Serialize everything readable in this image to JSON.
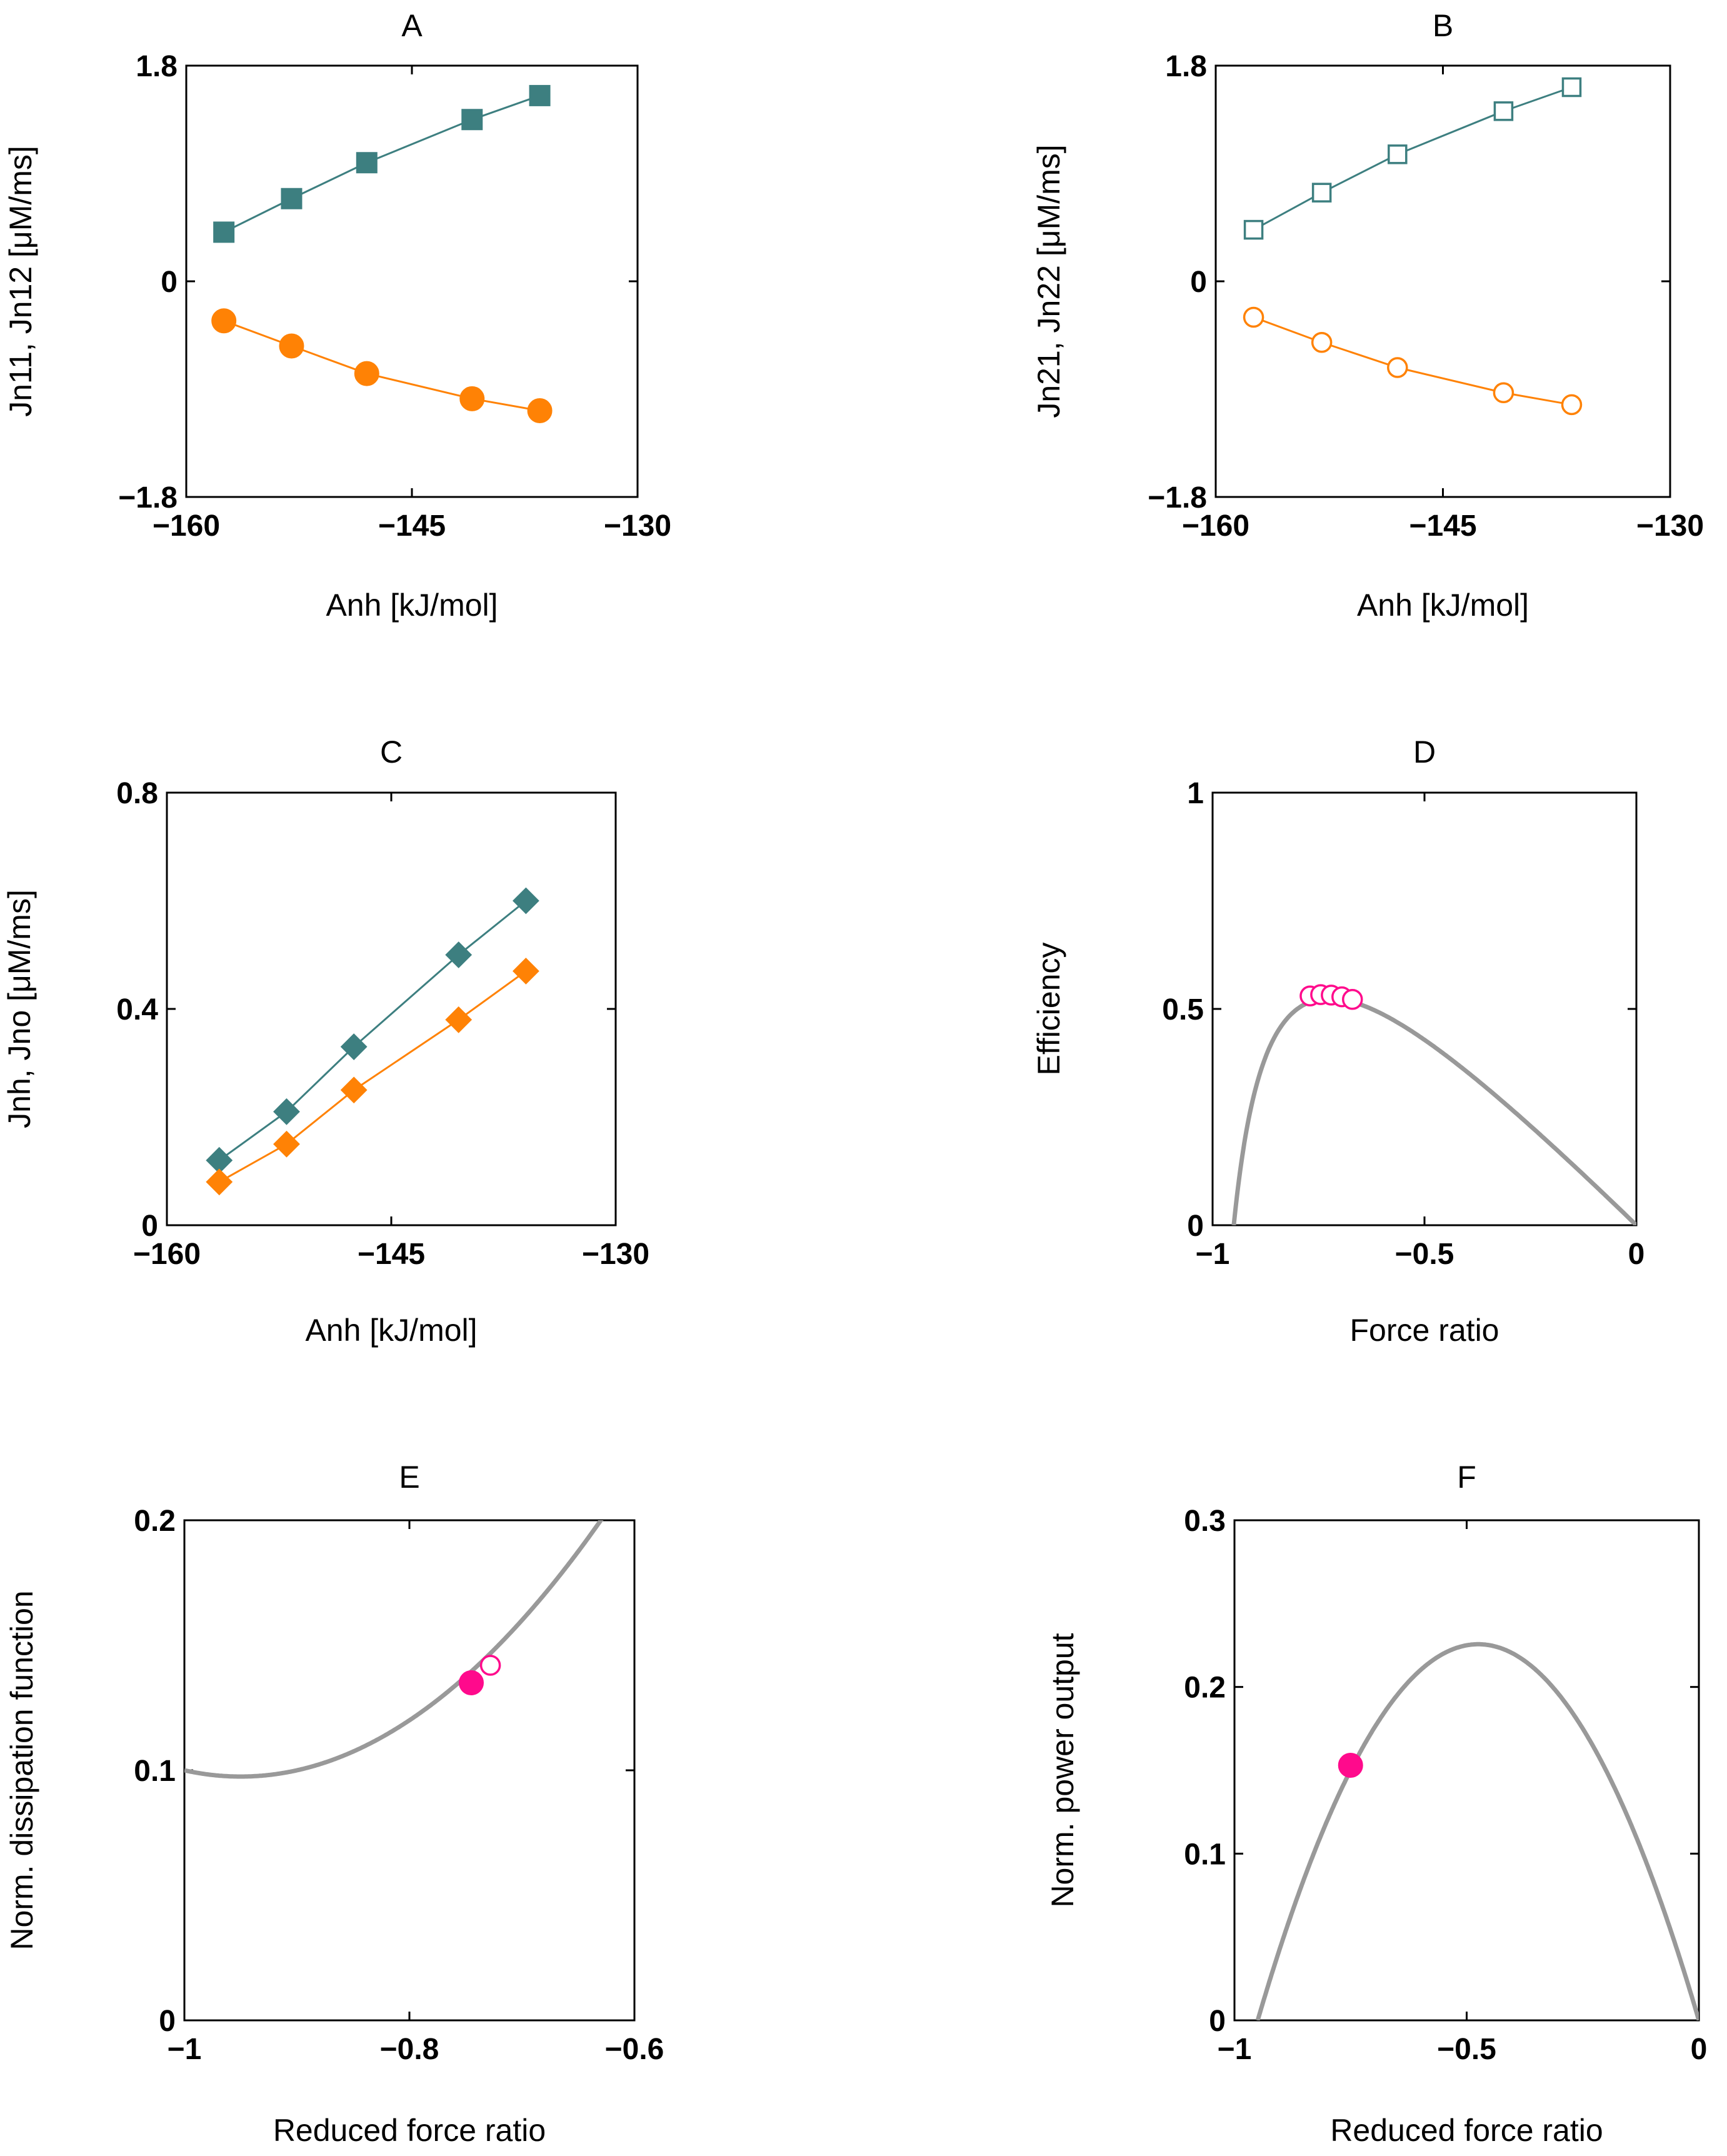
{
  "colors": {
    "teal": "#3d7f80",
    "orange": "#ff8205",
    "magenta": "#ff0a8c",
    "gray": "#999999"
  },
  "chart_data": [
    {
      "id": "A",
      "type": "line",
      "title": "A",
      "xlabel": "Anh  [kJ/mol]",
      "ylabel": "Jn11, Jn12  [μM/ms]",
      "xlim": [
        -160,
        -130
      ],
      "ylim": [
        -1.8,
        1.8
      ],
      "xticks": [
        -160,
        -145,
        -130
      ],
      "xtick_labels": [
        "−160",
        "−145",
        "−130"
      ],
      "yticks": [
        -1.8,
        0,
        1.8
      ],
      "ytick_labels": [
        "−1.8",
        "0",
        "1.8"
      ],
      "series": [
        {
          "name": "Jn11",
          "color": "teal",
          "marker": "square-filled",
          "x": [
            -157.5,
            -153,
            -148,
            -141,
            -136.5
          ],
          "y": [
            0.41,
            0.69,
            0.99,
            1.35,
            1.55
          ]
        },
        {
          "name": "Jn12",
          "color": "orange",
          "marker": "circle-filled",
          "x": [
            -157.5,
            -153,
            -148,
            -141,
            -136.5
          ],
          "y": [
            -0.33,
            -0.54,
            -0.77,
            -0.98,
            -1.08
          ]
        }
      ]
    },
    {
      "id": "B",
      "type": "line",
      "title": "B",
      "xlabel": "Anh [kJ/mol]",
      "ylabel": "Jn21, Jn22 [μM/ms]",
      "xlim": [
        -160,
        -130
      ],
      "ylim": [
        -1.8,
        1.8
      ],
      "xticks": [
        -160,
        -145,
        -130
      ],
      "xtick_labels": [
        "−160",
        "−145",
        "−130"
      ],
      "yticks": [
        -1.8,
        0,
        1.8
      ],
      "ytick_labels": [
        "−1.8",
        "0",
        "1.8"
      ],
      "series": [
        {
          "name": "Jn21",
          "color": "teal",
          "marker": "square-open",
          "x": [
            -157.5,
            -153,
            -148,
            -141,
            -136.5
          ],
          "y": [
            0.43,
            0.74,
            1.06,
            1.42,
            1.62
          ]
        },
        {
          "name": "Jn22",
          "color": "orange",
          "marker": "circle-open",
          "x": [
            -157.5,
            -153,
            -148,
            -141,
            -136.5
          ],
          "y": [
            -0.3,
            -0.51,
            -0.72,
            -0.93,
            -1.03
          ]
        }
      ]
    },
    {
      "id": "C",
      "type": "line",
      "title": "C",
      "xlabel": "Anh [kJ/mol]",
      "ylabel": "Jnh, Jno [μM/ms]",
      "xlim": [
        -160,
        -130
      ],
      "ylim": [
        0,
        0.8
      ],
      "xticks": [
        -160,
        -145,
        -130
      ],
      "xtick_labels": [
        "−160",
        "−145",
        "−130"
      ],
      "yticks": [
        0,
        0.4,
        0.8
      ],
      "ytick_labels": [
        "0",
        "0.4",
        "0.8"
      ],
      "series": [
        {
          "name": "Jnh",
          "color": "teal",
          "marker": "diamond-filled",
          "x": [
            -156.5,
            -152,
            -147.5,
            -140.5,
            -136
          ],
          "y": [
            0.12,
            0.21,
            0.33,
            0.5,
            0.6
          ]
        },
        {
          "name": "Jno",
          "color": "orange",
          "marker": "diamond-filled",
          "x": [
            -156.5,
            -152,
            -147.5,
            -140.5,
            -136
          ],
          "y": [
            0.08,
            0.15,
            0.25,
            0.38,
            0.47
          ]
        }
      ]
    },
    {
      "id": "D",
      "type": "line",
      "title": "D",
      "xlabel": "Force ratio",
      "ylabel": "Efficiency",
      "xlim": [
        -1,
        0
      ],
      "ylim": [
        0,
        1
      ],
      "xticks": [
        -1,
        -0.5,
        0
      ],
      "xtick_labels": [
        "−1",
        "−0.5",
        "0"
      ],
      "yticks": [
        0,
        0.5,
        1
      ],
      "ytick_labels": [
        "0",
        "0.5",
        "1"
      ],
      "curve": {
        "name": "efficiency curve",
        "color": "gray",
        "q": 0.95
      },
      "points": {
        "color": "magenta",
        "marker": "circle-open",
        "x": [
          -0.77,
          -0.745,
          -0.72,
          -0.695,
          -0.67
        ],
        "y": [
          0.53,
          0.533,
          0.532,
          0.528,
          0.522
        ]
      }
    },
    {
      "id": "E",
      "type": "line",
      "title": "E",
      "xlabel": "Reduced force ratio",
      "ylabel": "Norm. dissipation function",
      "xlim": [
        -1,
        -0.6
      ],
      "ylim": [
        0,
        0.2
      ],
      "xticks": [
        -1,
        -0.8,
        -0.6
      ],
      "xtick_labels": [
        "−1",
        "−0.8",
        "−0.6"
      ],
      "yticks": [
        0,
        0.1,
        0.2
      ],
      "ytick_labels": [
        "0",
        "0.1",
        "0.2"
      ],
      "curve": {
        "name": "dissipation curve",
        "color": "gray",
        "q": 0.95
      },
      "points": [
        {
          "color": "magenta",
          "marker": "circle-filled",
          "x": -0.745,
          "y": 0.135
        },
        {
          "color": "magenta",
          "marker": "circle-open",
          "x": -0.728,
          "y": 0.142
        }
      ]
    },
    {
      "id": "F",
      "type": "line",
      "title": "F",
      "xlabel": "Reduced force ratio",
      "ylabel": "Norm. power output",
      "xlim": [
        -1,
        0
      ],
      "ylim": [
        0,
        0.3
      ],
      "xticks": [
        -1,
        -0.5,
        0
      ],
      "xtick_labels": [
        "−1",
        "−0.5",
        "0"
      ],
      "yticks": [
        0,
        0.1,
        0.2,
        0.3
      ],
      "ytick_labels": [
        "0",
        "0.1",
        "0.2",
        "0.3"
      ],
      "curve": {
        "name": "power output curve",
        "color": "gray",
        "q": 0.95
      },
      "points": [
        {
          "color": "magenta",
          "marker": "circle-filled",
          "x": -0.75,
          "y": 0.153
        }
      ]
    }
  ]
}
